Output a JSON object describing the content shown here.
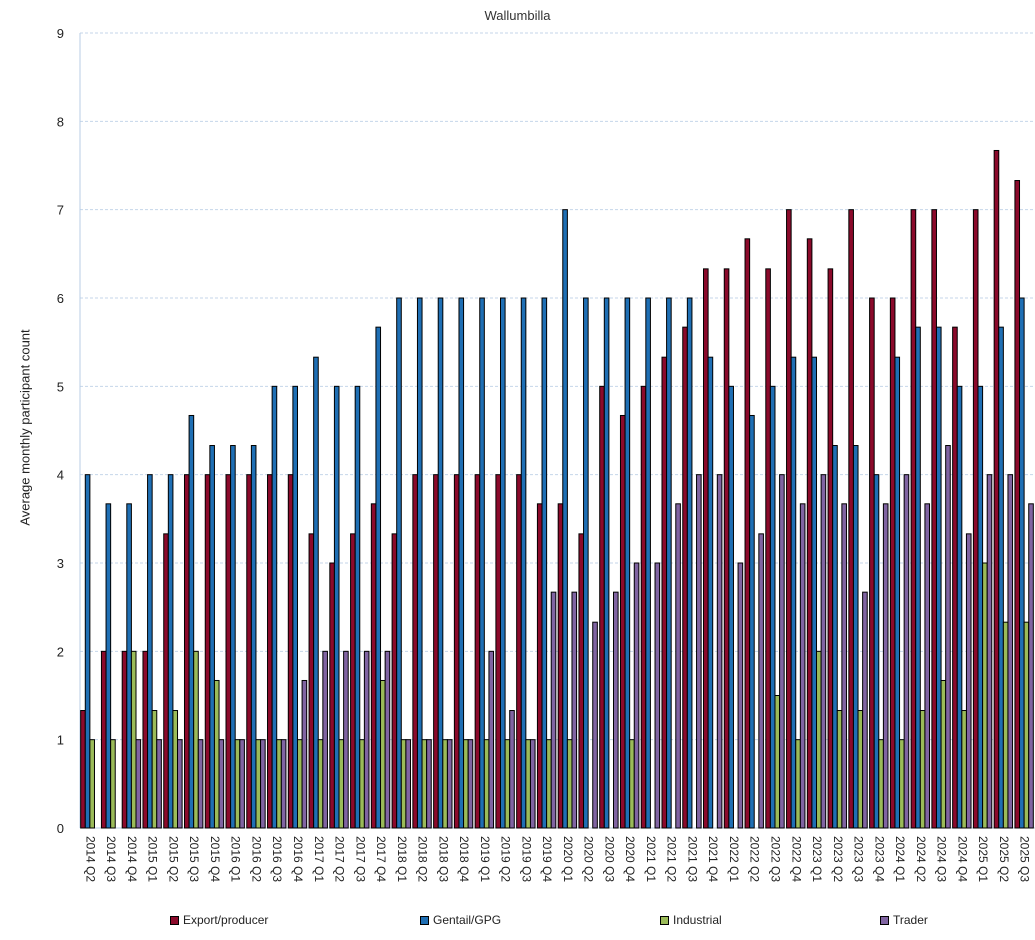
{
  "chart_data": {
    "type": "bar",
    "title": "Wallumbilla",
    "xlabel": "",
    "ylabel": "Average monthly participant count",
    "ylim": [
      0,
      9
    ],
    "yticks": [
      0,
      1,
      2,
      3,
      4,
      5,
      6,
      7,
      8,
      9
    ],
    "grid": true,
    "legend": "bottom",
    "categories": [
      "2014 Q2",
      "2014 Q3",
      "2014 Q4",
      "2015 Q1",
      "2015 Q2",
      "2015 Q3",
      "2015 Q4",
      "2016 Q1",
      "2016 Q2",
      "2016 Q3",
      "2016 Q4",
      "2017 Q1",
      "2017 Q2",
      "2017 Q3",
      "2017 Q4",
      "2018 Q1",
      "2018 Q2",
      "2018 Q3",
      "2018 Q4",
      "2019 Q1",
      "2019 Q2",
      "2019 Q3",
      "2019 Q4",
      "2020 Q1",
      "2020 Q2",
      "2020 Q3",
      "2020 Q4",
      "2021 Q1",
      "2021 Q2",
      "2021 Q3",
      "2021 Q4",
      "2022 Q1",
      "2022 Q2",
      "2022 Q3",
      "2022 Q4",
      "2023 Q1",
      "2023 Q2",
      "2023 Q3",
      "2023 Q4",
      "2024 Q1",
      "2024 Q2",
      "2024 Q3",
      "2024 Q4",
      "2025 Q1",
      "2025 Q2",
      "2025 Q3"
    ],
    "series": [
      {
        "name": "Export/producer",
        "color": "#8B0A2B",
        "values": [
          1.33,
          2,
          2,
          2,
          3.33,
          4,
          4,
          4,
          4,
          4,
          4,
          3.33,
          3,
          3.33,
          3.67,
          3.33,
          4,
          4,
          4,
          4,
          4,
          4,
          3.67,
          3.67,
          3.33,
          5,
          4.67,
          5,
          5.33,
          5.67,
          6.33,
          6.33,
          6.67,
          6.33,
          7,
          6.67,
          6.33,
          7,
          6,
          6,
          7,
          7,
          5.67,
          7,
          7.67,
          7.33
        ]
      },
      {
        "name": "Gentail/GPG",
        "color": "#1F6FB4",
        "values": [
          4,
          3.67,
          3.67,
          4,
          4,
          4.67,
          4.33,
          4.33,
          4.33,
          5,
          5,
          5.33,
          5,
          5,
          5.67,
          6,
          6,
          6,
          6,
          6,
          6,
          6,
          6,
          7,
          6,
          6,
          6,
          6,
          6,
          6,
          5.33,
          5,
          4.67,
          5,
          5.33,
          5.33,
          4.33,
          4.33,
          4,
          5.33,
          5.67,
          5.67,
          5,
          5,
          5.67,
          6
        ]
      },
      {
        "name": "Industrial",
        "color": "#9BBB59",
        "values": [
          1,
          1,
          2,
          1.33,
          1.33,
          2,
          1.67,
          1,
          1,
          1,
          1,
          1,
          1,
          1,
          1.67,
          1,
          1,
          1,
          1,
          1,
          1,
          1,
          1,
          1,
          0,
          0,
          1,
          0,
          0,
          0,
          0,
          0,
          0,
          1.5,
          1,
          2,
          1.33,
          1.33,
          1,
          1,
          1.33,
          1.67,
          1.33,
          3,
          2.33,
          2.33
        ]
      },
      {
        "name": "Trader",
        "color": "#8064A2",
        "values": [
          0,
          0,
          1,
          1,
          1,
          1,
          1,
          1,
          1,
          1,
          1.67,
          2,
          2,
          2,
          2,
          1,
          1,
          1,
          1,
          2,
          1.33,
          1,
          2.67,
          2.67,
          2.33,
          2.67,
          3,
          3,
          3.67,
          4,
          4,
          3,
          3.33,
          4,
          3.67,
          4,
          3.67,
          2.67,
          3.67,
          4,
          3.67,
          4.33,
          3.33,
          4,
          4,
          3.67
        ]
      }
    ]
  }
}
